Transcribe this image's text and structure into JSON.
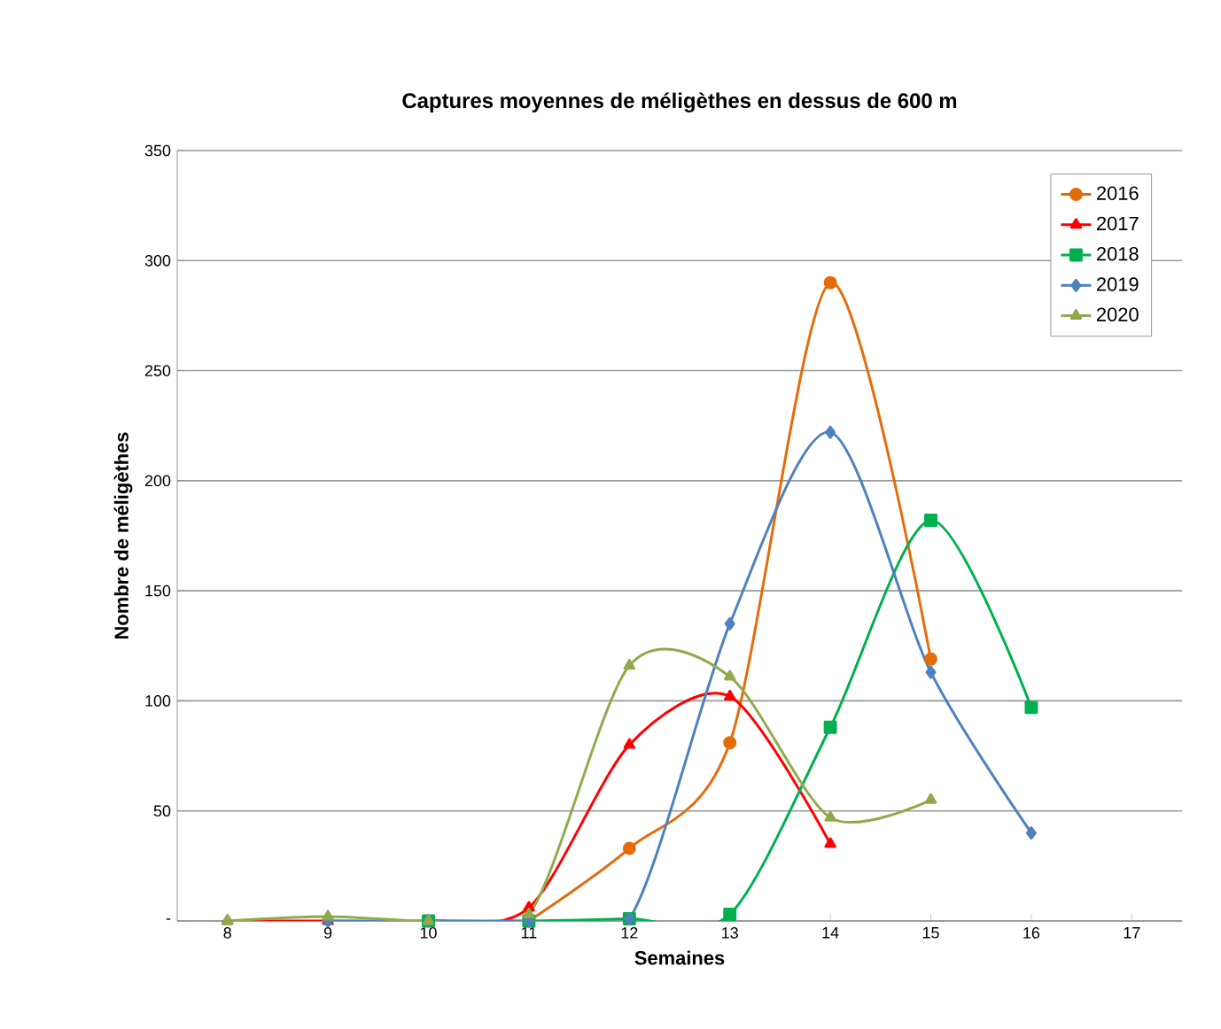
{
  "chart_data": {
    "type": "line",
    "title": "Captures moyennes de méligèthes en dessus de 600 m",
    "xlabel": "Semaines",
    "ylabel": "Nombre de méligèthes",
    "categories": [
      "8",
      "9",
      "10",
      "11",
      "12",
      "13",
      "14",
      "15",
      "16",
      "17"
    ],
    "ylim": [
      0,
      350
    ],
    "yticks": [
      {
        "value": 0,
        "label": "-"
      },
      50,
      100,
      150,
      200,
      250,
      300,
      350
    ],
    "grid": "y",
    "legend": "top right",
    "series": [
      {
        "name": "2016",
        "color": "#e46c0a",
        "marker": "circle",
        "values": [
          null,
          null,
          null,
          0,
          33,
          81,
          290,
          119,
          null,
          null
        ]
      },
      {
        "name": "2017",
        "color": "#ff0000",
        "marker": "triangle",
        "values": [
          0,
          0,
          0,
          6,
          80,
          102,
          35,
          null,
          null,
          null
        ]
      },
      {
        "name": "2018",
        "color": "#00b050",
        "marker": "square",
        "values": [
          null,
          null,
          0,
          0,
          1,
          3,
          88,
          182,
          97,
          null
        ]
      },
      {
        "name": "2019",
        "color": "#4f81bd",
        "marker": "diamond",
        "values": [
          null,
          0,
          0,
          0,
          1,
          135,
          222,
          113,
          40,
          null
        ]
      },
      {
        "name": "2020",
        "color": "#8faa4a",
        "marker": "triangle",
        "values": [
          0,
          2,
          0,
          3,
          116,
          111,
          47,
          55,
          null,
          null
        ]
      }
    ]
  }
}
